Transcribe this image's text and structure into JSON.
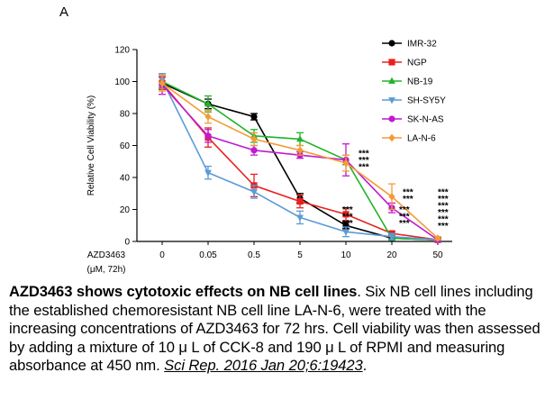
{
  "panel_label": "A",
  "chart_data": {
    "type": "line",
    "title": "",
    "xlabel_line1": "AZD3463",
    "xlabel_line2": "(μM, 72h)",
    "ylabel": "Relative Cell Viability (%)",
    "ylim": [
      0,
      120
    ],
    "yticks": [
      0,
      20,
      40,
      60,
      80,
      100,
      120
    ],
    "categories": [
      "0",
      "0.05",
      "0.5",
      "5",
      "10",
      "20",
      "50"
    ],
    "series": [
      {
        "name": "IMR-32",
        "color": "#000000",
        "marker": "circle",
        "values": [
          99,
          86,
          78,
          27,
          10,
          2,
          1
        ],
        "errors": [
          4,
          3,
          2,
          3,
          2,
          1,
          1
        ]
      },
      {
        "name": "NGP",
        "color": "#e8201f",
        "marker": "square",
        "values": [
          99,
          65,
          35,
          25,
          17,
          5,
          1
        ],
        "errors": [
          4,
          6,
          7,
          4,
          4,
          1,
          1
        ]
      },
      {
        "name": "NB-19",
        "color": "#22b22a",
        "marker": "triangle",
        "values": [
          100,
          86,
          66,
          64,
          51,
          2,
          1
        ],
        "errors": [
          4,
          5,
          4,
          4,
          3,
          1,
          1
        ]
      },
      {
        "name": "SH-SY5Y",
        "color": "#5b9bd5",
        "marker": "triangle-down",
        "values": [
          101,
          43,
          31,
          15,
          6,
          3,
          1
        ],
        "errors": [
          4,
          4,
          4,
          4,
          3,
          2,
          1
        ]
      },
      {
        "name": "SK-N-AS",
        "color": "#bf1bd0",
        "marker": "circle",
        "values": [
          98,
          66,
          57,
          54,
          51,
          21,
          1
        ],
        "errors": [
          6,
          4,
          3,
          2,
          10,
          3,
          1
        ]
      },
      {
        "name": "LA-N-6",
        "color": "#f59a35",
        "marker": "diamond",
        "values": [
          99,
          78,
          64,
          57,
          49,
          28,
          2
        ],
        "errors": [
          5,
          4,
          4,
          3,
          5,
          8,
          1
        ]
      }
    ],
    "annotations": [
      {
        "x_index": 4,
        "y": 52,
        "lines": [
          "***",
          "***",
          "***"
        ]
      },
      {
        "x_index": 5,
        "y": 28,
        "lines": [
          "***",
          "***"
        ]
      },
      {
        "x_index": 4,
        "y": 17,
        "lines": [
          "***",
          "***",
          "***"
        ]
      },
      {
        "x_index": 5,
        "y": 17,
        "lines": [
          "***",
          "***",
          "***"
        ]
      },
      {
        "x_index": 6,
        "y": 28,
        "lines": [
          "***",
          "***",
          "***",
          "***",
          "***",
          "***"
        ]
      }
    ]
  },
  "caption": {
    "title": "AZD3463 shows cytotoxic effects on NB cell lines",
    "body": ".  Six NB cell lines including the established chemoresistant NB cell line LA-N-6, were treated with the increasing concentrations of AZD3463 for 72 hrs. Cell viability was then assessed by adding a mixture of 10 μ L of CCK-8 and 190 μ L of RPMI and measuring absorbance at 450 nm. ",
    "citation": "Sci Rep. 2016 Jan 20;6:19423",
    "end": "."
  }
}
